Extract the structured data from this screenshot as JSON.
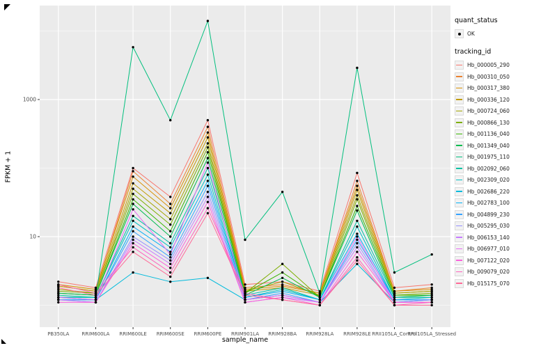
{
  "figure": {
    "background": "#FFFFFF",
    "panel_background": "#EBEBEB",
    "gridline_color": "#FFFFFF",
    "point_color": "#000000",
    "tick_color": "#333333",
    "tick_label_color": "#4D4D4D"
  },
  "chart_data": {
    "type": "line",
    "title": "",
    "xlabel": "sample_name",
    "ylabel": "FPKM + 1",
    "y_scale": "log10",
    "y_ticks": [
      10,
      1000
    ],
    "y_minor_ticks": [
      1,
      100,
      10000
    ],
    "ylim_log10": [
      -0.3,
      4.35
    ],
    "grid": true,
    "legend_position": "right",
    "marker": "black-point",
    "categories": [
      "PB350LA",
      "RRIM600LA",
      "RRIM600LE",
      "RRIM600SE",
      "RRIM600PE",
      "RRIM901LA",
      "RRIM928BA",
      "RRIM928LA",
      "RRIM928LE",
      "RRII105LA_Control",
      "RRII105LA_Stressed"
    ],
    "series": [
      {
        "name": "Hb_000005_290",
        "color": "#F8766D",
        "values": [
          2.2,
          1.8,
          100,
          38,
          500,
          2.0,
          2.2,
          1.6,
          85,
          1.8,
          2.0
        ]
      },
      {
        "name": "Hb_000310_050",
        "color": "#EA8331",
        "values": [
          1.9,
          1.6,
          90,
          30,
          400,
          1.8,
          2.0,
          1.5,
          65,
          1.6,
          1.8
        ]
      },
      {
        "name": "Hb_000317_380",
        "color": "#D89000",
        "values": [
          2.0,
          1.7,
          75,
          26,
          330,
          1.7,
          1.9,
          1.5,
          55,
          1.6,
          1.7
        ]
      },
      {
        "name": "Hb_000336_120",
        "color": "#C09B00",
        "values": [
          1.9,
          1.6,
          60,
          22,
          280,
          1.6,
          1.8,
          1.4,
          48,
          1.5,
          1.6
        ]
      },
      {
        "name": "Hb_000724_060",
        "color": "#A3A500",
        "values": [
          1.7,
          1.5,
          50,
          18,
          230,
          1.6,
          2.2,
          1.4,
          40,
          1.5,
          1.6
        ]
      },
      {
        "name": "Hb_000866_130",
        "color": "#7CAE00",
        "values": [
          1.6,
          1.5,
          42,
          15,
          200,
          1.5,
          4.0,
          1.3,
          35,
          1.4,
          1.5
        ]
      },
      {
        "name": "Hb_001136_040",
        "color": "#39B600",
        "values": [
          1.5,
          1.4,
          35,
          12,
          170,
          1.5,
          3.0,
          1.3,
          28,
          1.4,
          1.4
        ]
      },
      {
        "name": "Hb_001349_040",
        "color": "#00BB4E",
        "values": [
          1.5,
          1.4,
          30,
          10,
          140,
          1.4,
          2.5,
          1.3,
          24,
          1.3,
          1.4
        ]
      },
      {
        "name": "Hb_001975_110",
        "color": "#00BF7D",
        "values": [
          1.3,
          1.3,
          5800,
          500,
          14000,
          9.0,
          45,
          1.5,
          2900,
          3.0,
          5.5
        ]
      },
      {
        "name": "Hb_002092_060",
        "color": "#00C1A3",
        "values": [
          1.4,
          1.3,
          20,
          8,
          100,
          1.4,
          1.8,
          1.2,
          17,
          1.3,
          1.3
        ]
      },
      {
        "name": "Hb_002309_020",
        "color": "#00BFC4",
        "values": [
          1.3,
          1.3,
          17,
          7,
          80,
          1.3,
          1.7,
          1.2,
          14,
          1.2,
          1.3
        ]
      },
      {
        "name": "Hb_002686_220",
        "color": "#00BBDC",
        "values": [
          1.2,
          1.2,
          3.0,
          2.2,
          2.5,
          1.2,
          1.4,
          1.1,
          4.0,
          1.1,
          1.2
        ]
      },
      {
        "name": "Hb_002783_100",
        "color": "#00B0F6",
        "values": [
          1.3,
          1.2,
          14,
          6,
          65,
          1.3,
          1.6,
          1.2,
          11,
          1.2,
          1.2
        ]
      },
      {
        "name": "Hb_004899_230",
        "color": "#35A2FF",
        "values": [
          1.2,
          1.2,
          12,
          5,
          55,
          1.2,
          1.5,
          1.1,
          9,
          1.2,
          1.2
        ]
      },
      {
        "name": "Hb_005295_030",
        "color": "#9590FF",
        "values": [
          1.2,
          1.1,
          10,
          4.5,
          45,
          1.2,
          1.4,
          1.1,
          8,
          1.1,
          1.2
        ]
      },
      {
        "name": "Hb_006153_140",
        "color": "#C77CFF",
        "values": [
          1.2,
          1.1,
          9,
          4,
          38,
          1.1,
          1.3,
          1.1,
          7,
          1.1,
          1.1
        ]
      },
      {
        "name": "Hb_006977_010",
        "color": "#E76BF3",
        "values": [
          1.3,
          1.2,
          25,
          5.5,
          120,
          1.2,
          1.4,
          1.1,
          10,
          1.1,
          1.1
        ]
      },
      {
        "name": "Hb_007122_020",
        "color": "#FA62DB",
        "values": [
          1.1,
          1.1,
          8,
          3.5,
          32,
          1.1,
          1.3,
          1.0,
          6,
          1.1,
          1.1
        ]
      },
      {
        "name": "Hb_009079_020",
        "color": "#FF62BC",
        "values": [
          2.0,
          1.5,
          7,
          3.0,
          26,
          1.5,
          1.2,
          1.0,
          5,
          1.0,
          1.1
        ]
      },
      {
        "name": "Hb_015175_070",
        "color": "#FF6A98",
        "values": [
          1.8,
          1.4,
          6,
          2.6,
          22,
          1.4,
          1.2,
          1.0,
          4.5,
          1.0,
          1.0
        ]
      }
    ]
  },
  "legend": {
    "quant_status": {
      "title": "quant_status",
      "items": [
        {
          "label": "OK",
          "marker": "point",
          "color": "#000000"
        }
      ]
    },
    "tracking_id": {
      "title": "tracking_id"
    }
  }
}
